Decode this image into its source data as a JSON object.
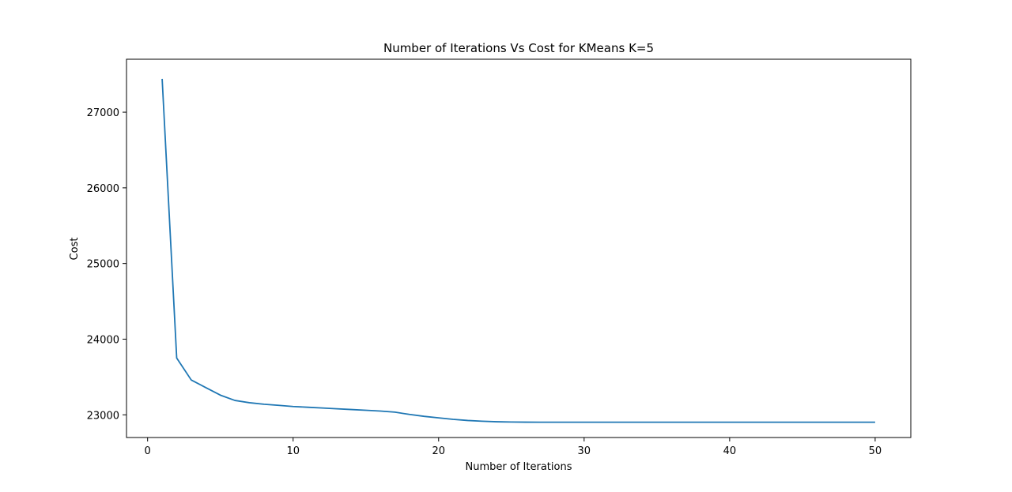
{
  "chart_data": {
    "type": "line",
    "title": "Number of Iterations Vs Cost for KMeans K=5",
    "xlabel": "Number of Iterations",
    "ylabel": "Cost",
    "xlim": [
      -1.45,
      52.45
    ],
    "ylim": [
      22700,
      27700
    ],
    "xticks": [
      0,
      10,
      20,
      30,
      40,
      50
    ],
    "yticks": [
      23000,
      24000,
      25000,
      26000,
      27000
    ],
    "grid": false,
    "legend": "none",
    "color": "#1f77b4",
    "series": [
      {
        "x": [
          1,
          2,
          3,
          4,
          5,
          6,
          7,
          8,
          9,
          10,
          11,
          12,
          13,
          14,
          15,
          16,
          17,
          18,
          19,
          20,
          21,
          22,
          23,
          24,
          25,
          26,
          27,
          28,
          29,
          30,
          31,
          32,
          33,
          34,
          35,
          36,
          37,
          38,
          39,
          40,
          41,
          42,
          43,
          44,
          45,
          46,
          47,
          48,
          49,
          50
        ],
        "values": [
          27440,
          23750,
          23460,
          23360,
          23260,
          23190,
          23160,
          23140,
          23125,
          23110,
          23100,
          23090,
          23080,
          23070,
          23060,
          23050,
          23035,
          23005,
          22980,
          22960,
          22940,
          22925,
          22915,
          22908,
          22905,
          22903,
          22902,
          22902,
          22902,
          22902,
          22902,
          22902,
          22902,
          22902,
          22902,
          22902,
          22902,
          22902,
          22902,
          22902,
          22902,
          22902,
          22902,
          22902,
          22902,
          22902,
          22902,
          22902,
          22902,
          22902
        ]
      }
    ]
  }
}
